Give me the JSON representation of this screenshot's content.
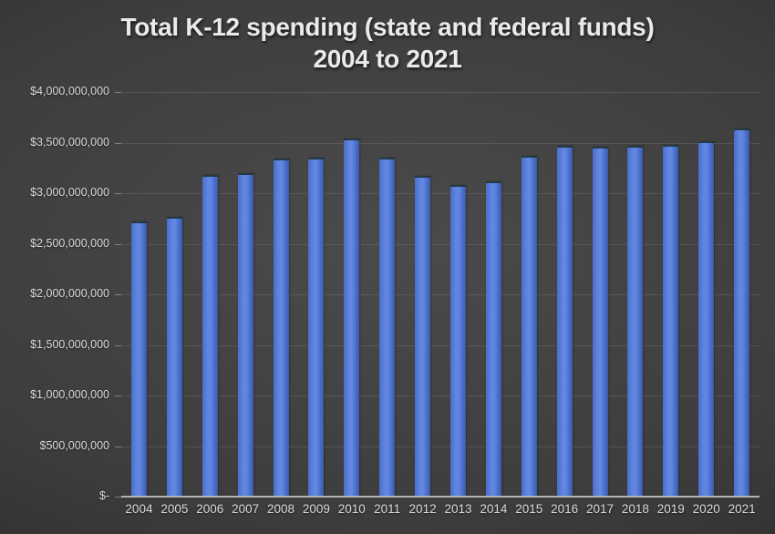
{
  "title": {
    "line1": "Total K-12 spending (state and federal funds)",
    "line2": "2004 to 2021"
  },
  "colors": {
    "bar_edge": "#4a6ec8",
    "bar_mid": "#5d83de",
    "bar_center": "#6389e3",
    "bar_mid2": "#4f75d2",
    "bar_edge_dark": "#3a5aa8",
    "axis_line": "#b3b3b3",
    "text": "#dadada",
    "background_center": "#4b4b4b",
    "background_corner": "#232323"
  },
  "chart_data": {
    "type": "bar",
    "title": "Total K-12 spending (state and federal funds) 2004 to 2021",
    "xlabel": "",
    "ylabel": "",
    "ylim": [
      0,
      4000000000
    ],
    "grid": true,
    "legend": false,
    "categories": [
      "2004",
      "2005",
      "2006",
      "2007",
      "2008",
      "2009",
      "2010",
      "2011",
      "2012",
      "2013",
      "2014",
      "2015",
      "2016",
      "2017",
      "2018",
      "2019",
      "2020",
      "2021"
    ],
    "values": [
      2700000000,
      2745000000,
      3165000000,
      3180000000,
      3320000000,
      3330000000,
      3520000000,
      3335000000,
      3150000000,
      3065000000,
      3095000000,
      3355000000,
      3450000000,
      3440000000,
      3450000000,
      3460000000,
      3495000000,
      3625000000
    ],
    "y_ticks": [
      {
        "value": 4000000000,
        "label": "$4,000,000,000"
      },
      {
        "value": 3500000000,
        "label": "$3,500,000,000"
      },
      {
        "value": 3000000000,
        "label": "$3,000,000,000"
      },
      {
        "value": 2500000000,
        "label": "$2,500,000,000"
      },
      {
        "value": 2000000000,
        "label": "$2,000,000,000"
      },
      {
        "value": 1500000000,
        "label": "$1,500,000,000"
      },
      {
        "value": 1000000000,
        "label": "$1,000,000,000"
      },
      {
        "value": 500000000,
        "label": "$500,000,000"
      },
      {
        "value": 0,
        "label": "$-"
      }
    ]
  }
}
